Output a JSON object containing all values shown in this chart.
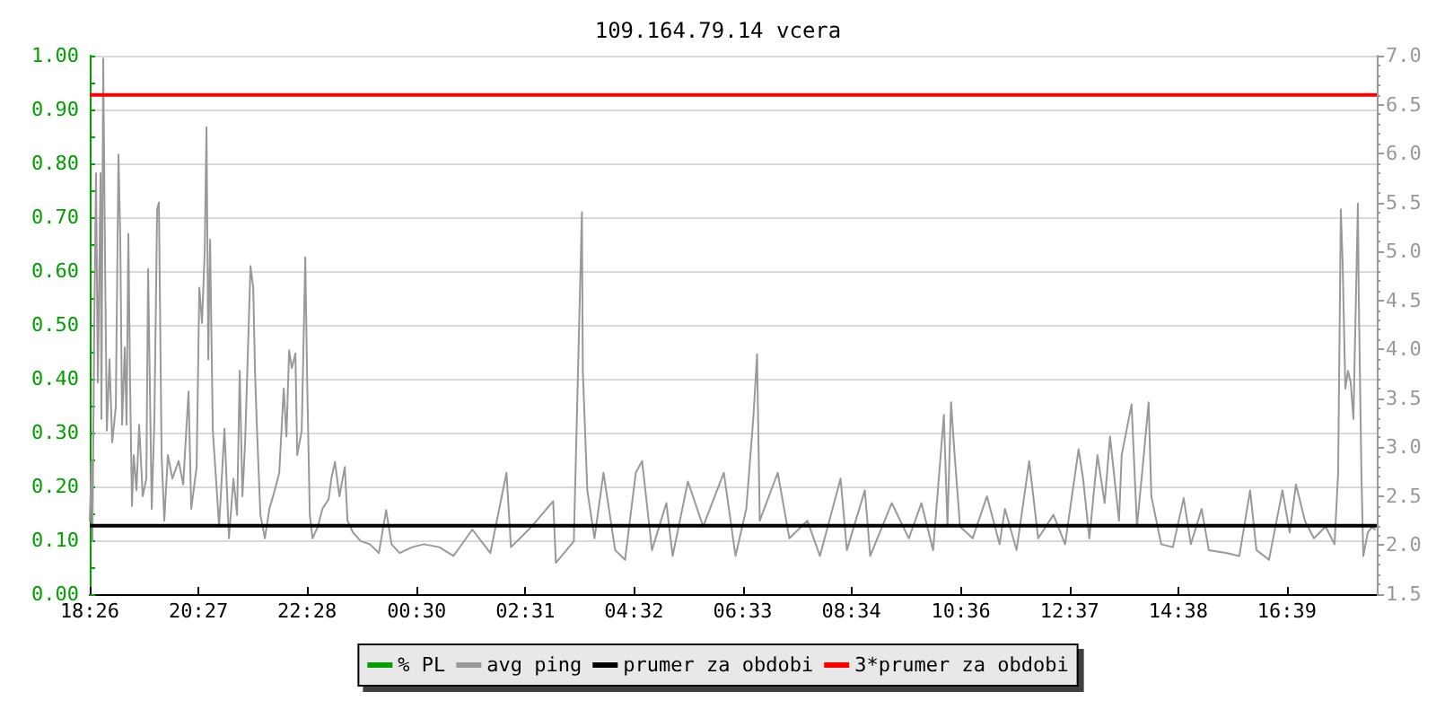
{
  "chart_data": {
    "type": "line",
    "title": "109.164.79.14 vcera",
    "xlim": [
      "--01-01T18:26",
      "--01-02T18:19"
    ],
    "xticks": [
      {
        "value": "--01-01T18:26",
        "label": "18:26"
      },
      {
        "value": "--01-01T20:27",
        "label": "20:27"
      },
      {
        "value": "--01-01T22:28",
        "label": "22:28"
      },
      {
        "value": "--01-02T00:30",
        "label": "00:30"
      },
      {
        "value": "--01-02T02:31",
        "label": "02:31"
      },
      {
        "value": "--01-02T04:32",
        "label": "04:32"
      },
      {
        "value": "--01-02T06:33",
        "label": "06:33"
      },
      {
        "value": "--01-02T08:34",
        "label": "08:34"
      },
      {
        "value": "--01-02T10:36",
        "label": "10:36"
      },
      {
        "value": "--01-02T12:37",
        "label": "12:37"
      },
      {
        "value": "--01-02T14:38",
        "label": "14:38"
      },
      {
        "value": "--01-02T16:39",
        "label": "16:39"
      }
    ],
    "ylim": [
      0,
      1
    ],
    "yticks": [
      {
        "value": 0,
        "label": "0.00"
      },
      {
        "value": 0.05,
        "label": null
      },
      {
        "value": 0.1,
        "label": "0.10"
      },
      {
        "value": 0.15,
        "label": null
      },
      {
        "value": 0.2,
        "label": "0.20"
      },
      {
        "value": 0.25,
        "label": null
      },
      {
        "value": 0.3,
        "label": "0.30"
      },
      {
        "value": 0.35,
        "label": null
      },
      {
        "value": 0.4,
        "label": "0.40"
      },
      {
        "value": 0.45,
        "label": null
      },
      {
        "value": 0.5,
        "label": "0.50"
      },
      {
        "value": 0.55,
        "label": null
      },
      {
        "value": 0.6,
        "label": "0.60"
      },
      {
        "value": 0.65,
        "label": null
      },
      {
        "value": 0.7,
        "label": "0.70"
      },
      {
        "value": 0.75,
        "label": null
      },
      {
        "value": 0.8,
        "label": "0.80"
      },
      {
        "value": 0.85,
        "label": null
      },
      {
        "value": 0.9,
        "label": "0.90"
      },
      {
        "value": 0.95,
        "label": null
      },
      {
        "value": 1,
        "label": "1.00"
      }
    ],
    "y2lim": [
      1.5,
      7.0
    ],
    "y2ticks": [
      {
        "value": 1.5,
        "label": "1.5"
      },
      {
        "value": 1.6,
        "label": null
      },
      {
        "value": 1.7,
        "label": null
      },
      {
        "value": 1.8,
        "label": null
      },
      {
        "value": 1.9,
        "label": null
      },
      {
        "value": 2.0,
        "label": "2.0"
      },
      {
        "value": 2.1,
        "label": null
      },
      {
        "value": 2.2,
        "label": null
      },
      {
        "value": 2.3,
        "label": null
      },
      {
        "value": 2.4,
        "label": null
      },
      {
        "value": 2.5,
        "label": "2.5"
      },
      {
        "value": 2.6,
        "label": null
      },
      {
        "value": 2.7,
        "label": null
      },
      {
        "value": 2.8,
        "label": null
      },
      {
        "value": 2.9,
        "label": null
      },
      {
        "value": 3.0,
        "label": "3.0"
      },
      {
        "value": 3.1,
        "label": null
      },
      {
        "value": 3.2,
        "label": null
      },
      {
        "value": 3.3,
        "label": null
      },
      {
        "value": 3.4,
        "label": null
      },
      {
        "value": 3.5,
        "label": "3.5"
      },
      {
        "value": 3.6,
        "label": null
      },
      {
        "value": 3.7,
        "label": null
      },
      {
        "value": 3.8,
        "label": null
      },
      {
        "value": 3.9,
        "label": null
      },
      {
        "value": 4.0,
        "label": "4.0"
      },
      {
        "value": 4.1,
        "label": null
      },
      {
        "value": 4.2,
        "label": null
      },
      {
        "value": 4.3,
        "label": null
      },
      {
        "value": 4.4,
        "label": null
      },
      {
        "value": 4.5,
        "label": "4.5"
      },
      {
        "value": 4.6,
        "label": null
      },
      {
        "value": 4.7,
        "label": null
      },
      {
        "value": 4.8,
        "label": null
      },
      {
        "value": 4.9,
        "label": null
      },
      {
        "value": 5.0,
        "label": "5.0"
      },
      {
        "value": 5.1,
        "label": null
      },
      {
        "value": 5.2,
        "label": null
      },
      {
        "value": 5.3,
        "label": null
      },
      {
        "value": 5.4,
        "label": null
      },
      {
        "value": 5.5,
        "label": "5.5"
      },
      {
        "value": 5.6,
        "label": null
      },
      {
        "value": 5.7,
        "label": null
      },
      {
        "value": 5.8,
        "label": null
      },
      {
        "value": 5.9,
        "label": null
      },
      {
        "value": 6.0,
        "label": "6.0"
      },
      {
        "value": 6.1,
        "label": null
      },
      {
        "value": 6.2,
        "label": null
      },
      {
        "value": 6.3,
        "label": null
      },
      {
        "value": 6.4,
        "label": null
      },
      {
        "value": 6.5,
        "label": "6.5"
      },
      {
        "value": 6.6,
        "label": null
      },
      {
        "value": 6.7,
        "label": null
      },
      {
        "value": 6.8,
        "label": null
      },
      {
        "value": 6.9,
        "label": null
      },
      {
        "value": 7.0,
        "label": "7.0"
      }
    ],
    "grid": "y",
    "legend": "bottom",
    "series": [
      {
        "name": "% PL",
        "color": "#00a000"
      },
      {
        "name": "avg ping",
        "color": "#999999",
        "axis": "y2",
        "x": [
          "--01-01T18:26",
          "--01-01T18:28",
          "--01-01T18:29",
          "--01-01T18:31",
          "--01-01T18:33",
          "--01-01T18:35",
          "--01-01T18:38",
          "--01-01T18:39",
          "--01-01T18:41",
          "--01-01T18:43",
          "--01-01T18:45",
          "--01-01T18:48",
          "--01-01T18:51",
          "--01-01T18:55",
          "--01-01T18:58",
          "--01-01T19:00",
          "--01-01T19:02",
          "--01-01T19:05",
          "--01-01T19:07",
          "--01-01T19:09",
          "--01-01T19:11",
          "--01-01T19:13",
          "--01-01T19:15",
          "--01-01T19:18",
          "--01-01T19:21",
          "--01-01T19:25",
          "--01-01T19:29",
          "--01-01T19:31",
          "--01-01T19:35",
          "--01-01T19:38",
          "--01-01T19:41",
          "--01-01T19:43",
          "--01-01T19:46",
          "--01-01T19:49",
          "--01-01T19:53",
          "--01-01T19:58",
          "--01-01T20:05",
          "--01-01T20:10",
          "--01-01T20:16",
          "--01-01T20:19",
          "--01-01T20:25",
          "--01-01T20:28",
          "--01-01T20:31",
          "--01-01T20:34",
          "--01-01T20:36",
          "--01-01T20:38",
          "--01-01T20:40",
          "--01-01T20:43",
          "--01-01T20:47",
          "--01-01T20:50",
          "--01-01T20:56",
          "--01-01T21:01",
          "--01-01T21:06",
          "--01-01T21:10",
          "--01-01T21:13",
          "--01-01T21:16",
          "--01-01T21:19",
          "--01-01T21:25",
          "--01-01T21:28",
          "--01-01T21:30",
          "--01-01T21:32",
          "--01-01T21:36",
          "--01-01T21:41",
          "--01-01T21:46",
          "--01-01T21:52",
          "--01-01T21:57",
          "--01-01T22:02",
          "--01-01T22:05",
          "--01-01T22:08",
          "--01-01T22:11",
          "--01-01T22:15",
          "--01-01T22:17",
          "--01-01T22:22",
          "--01-01T22:26",
          "--01-01T22:28",
          "--01-01T22:31",
          "--01-01T22:34",
          "--01-01T22:40",
          "--01-01T22:45",
          "--01-01T22:52",
          "--01-01T22:55",
          "--01-01T22:59",
          "--01-01T23:04",
          "--01-01T23:10",
          "--01-01T23:13",
          "--01-01T23:19",
          "--01-01T23:28",
          "--01-01T23:38",
          "--01-01T23:48",
          "--01-01T23:56",
          "--01-02T00:02",
          "--01-02T00:11",
          "--01-02T00:25",
          "--01-02T00:38",
          "--01-02T00:55",
          "--01-02T01:11",
          "--01-02T01:32",
          "--01-02T01:52",
          "--01-02T02:10",
          "--01-02T02:15",
          "--01-02T02:38",
          "--01-02T03:02",
          "--01-02T03:05",
          "--01-02T03:25",
          "--01-02T03:34",
          "--01-02T03:35",
          "--01-02T03:40",
          "--01-02T03:48",
          "--01-02T03:58",
          "--01-02T04:11",
          "--01-02T04:22",
          "--01-02T04:34",
          "--01-02T04:41",
          "--01-02T04:52",
          "--01-02T05:08",
          "--01-02T05:15",
          "--01-02T05:32",
          "--01-02T05:49",
          "--01-02T06:12",
          "--01-02T06:25",
          "--01-02T06:37",
          "--01-02T06:45",
          "--01-02T06:49",
          "--01-02T06:52",
          "--01-02T07:12",
          "--01-02T07:25",
          "--01-02T07:45",
          "--01-02T07:59",
          "--01-02T08:22",
          "--01-02T08:29",
          "--01-02T08:49",
          "--01-02T08:55",
          "--01-02T09:19",
          "--01-02T09:38",
          "--01-02T09:52",
          "--01-02T10:05",
          "--01-02T10:17",
          "--01-02T10:21",
          "--01-02T10:25",
          "--01-02T10:29",
          "--01-02T10:35",
          "--01-02T10:49",
          "--01-02T11:05",
          "--01-02T11:19",
          "--01-02T11:25",
          "--01-02T11:38",
          "--01-02T11:52",
          "--01-02T12:02",
          "--01-02T12:19",
          "--01-02T12:32",
          "--01-02T12:47",
          "--01-02T12:52",
          "--01-02T12:59",
          "--01-02T13:08",
          "--01-02T13:16",
          "--01-02T13:22",
          "--01-02T13:32",
          "--01-02T13:35",
          "--01-02T13:46",
          "--01-02T13:52",
          "--01-02T13:59",
          "--01-02T14:05",
          "--01-02T14:08",
          "--01-02T14:19",
          "--01-02T14:32",
          "--01-02T14:44",
          "--01-02T14:52",
          "--01-02T15:04",
          "--01-02T15:12",
          "--01-02T15:32",
          "--01-02T15:46",
          "--01-02T15:58",
          "--01-02T16:05",
          "--01-02T16:19",
          "--01-02T16:34",
          "--01-02T16:42",
          "--01-02T16:49",
          "--01-02T16:59",
          "--01-02T17:09",
          "--01-02T17:22",
          "--01-02T17:32",
          "--01-02T17:36",
          "--01-02T17:39",
          "--01-02T17:41",
          "--01-02T17:44",
          "--01-02T17:47",
          "--01-02T17:50",
          "--01-02T17:53",
          "--01-02T17:58",
          "--01-02T17:59",
          "--01-02T18:02",
          "--01-02T18:04",
          "--01-02T18:09",
          "--01-02T18:14",
          "--01-02T18:17"
        ],
        "values": [
          2.25,
          2.86,
          2.04,
          4.21,
          5.8,
          3.66,
          5.8,
          3.29,
          6.97,
          4.94,
          3.17,
          3.9,
          3.05,
          3.41,
          5.99,
          5.12,
          3.23,
          4.02,
          3.23,
          5.18,
          3.6,
          2.4,
          2.92,
          2.56,
          3.23,
          2.5,
          2.68,
          4.82,
          2.37,
          3.29,
          5.43,
          5.5,
          2.92,
          2.25,
          2.92,
          2.68,
          2.86,
          2.62,
          3.57,
          2.37,
          2.8,
          4.63,
          4.27,
          5.0,
          6.27,
          3.9,
          5.12,
          3.17,
          2.62,
          2.19,
          3.19,
          2.07,
          2.68,
          2.31,
          3.78,
          2.5,
          3.05,
          4.85,
          4.63,
          3.78,
          3.23,
          2.31,
          2.07,
          2.37,
          2.56,
          2.74,
          3.6,
          3.11,
          3.99,
          3.81,
          3.96,
          2.92,
          3.17,
          4.94,
          3.72,
          2.31,
          2.07,
          2.19,
          2.37,
          2.47,
          2.68,
          2.85,
          2.5,
          2.8,
          2.25,
          2.13,
          2.04,
          2.01,
          1.92,
          2.36,
          2.01,
          1.92,
          1.98,
          2.01,
          1.98,
          1.89,
          2.16,
          1.92,
          2.74,
          1.98,
          2.19,
          2.45,
          1.82,
          2.04,
          5.4,
          3.78,
          2.56,
          2.07,
          2.74,
          1.95,
          1.85,
          2.74,
          2.86,
          1.95,
          2.43,
          1.89,
          2.65,
          2.19,
          2.74,
          1.89,
          2.37,
          3.32,
          3.95,
          2.25,
          2.74,
          2.07,
          2.25,
          1.89,
          2.68,
          1.95,
          2.56,
          1.89,
          2.43,
          2.07,
          2.43,
          1.95,
          3.33,
          2.19,
          3.46,
          2.92,
          2.19,
          2.07,
          2.5,
          2.01,
          2.37,
          1.95,
          2.86,
          2.07,
          2.31,
          2.01,
          2.98,
          2.68,
          2.07,
          2.92,
          2.43,
          3.11,
          2.25,
          2.92,
          3.44,
          2.19,
          2.86,
          3.46,
          2.5,
          2.01,
          1.98,
          2.48,
          2.01,
          2.37,
          1.95,
          1.92,
          1.89,
          2.56,
          1.95,
          1.85,
          2.56,
          2.13,
          2.62,
          2.25,
          2.07,
          2.19,
          2.01,
          2.74,
          5.43,
          4.88,
          3.6,
          3.78,
          3.66,
          3.29,
          5.49,
          4.51,
          2.68,
          1.89,
          2.13,
          2.19,
          2.16
        ]
      }
    ],
    "ref_lines": [
      {
        "axis": "y2",
        "value": 2.2,
        "label": "prumer za obdobi",
        "color": "#000000"
      },
      {
        "axis": "y2",
        "value": 6.6,
        "label": "3*prumer za obdobi",
        "color": "#ff0000"
      }
    ]
  }
}
